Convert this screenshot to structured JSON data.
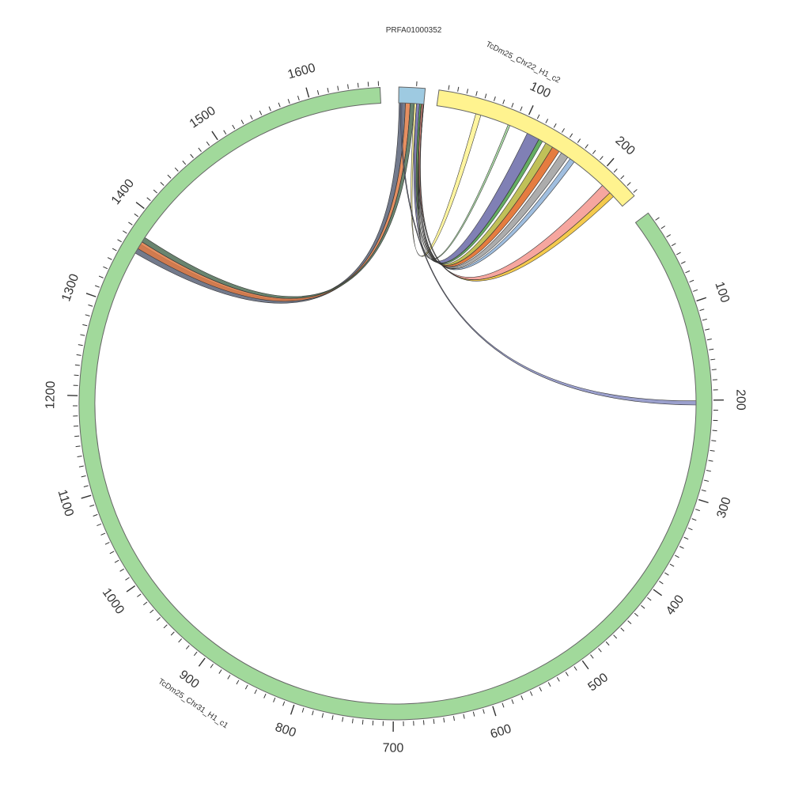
{
  "diagram": {
    "type": "circos",
    "tick_step": 10,
    "label_step": 100,
    "segments": [
      {
        "id": "prfa",
        "name": "PRFA01000352",
        "color": "#9ecae1",
        "ticks": [],
        "tick_labels": []
      },
      {
        "id": "chr22",
        "name": "TcDm25_Chr22_H1_c2",
        "color": "#fff38f",
        "ticks": [],
        "tick_labels": [
          "100",
          "200"
        ]
      },
      {
        "id": "chr31",
        "name": "TcDm25_Chr31_H1_c1",
        "color": "#a1d99b",
        "ticks": [],
        "tick_labels": [
          "100",
          "200",
          "300",
          "400",
          "500",
          "600",
          "700",
          "800",
          "900",
          "1000",
          "1100",
          "1200",
          "1300",
          "1400",
          "1500",
          "1600"
        ]
      }
    ],
    "links": [
      {
        "color": "#5a6378"
      },
      {
        "color": "#e07b45"
      },
      {
        "color": "#4f6e56"
      },
      {
        "color": "#fff38f"
      },
      {
        "color": "#6a6aa8"
      },
      {
        "color": "#4aa048"
      },
      {
        "color": "#b5b53b"
      },
      {
        "color": "#e0651f"
      },
      {
        "color": "#9e9e9e"
      },
      {
        "color": "#8fb3d9"
      },
      {
        "color": "#a1d99b"
      },
      {
        "color": "#f4978e"
      },
      {
        "color": "#f2c12e"
      },
      {
        "color": "#8a8fc4"
      }
    ]
  }
}
